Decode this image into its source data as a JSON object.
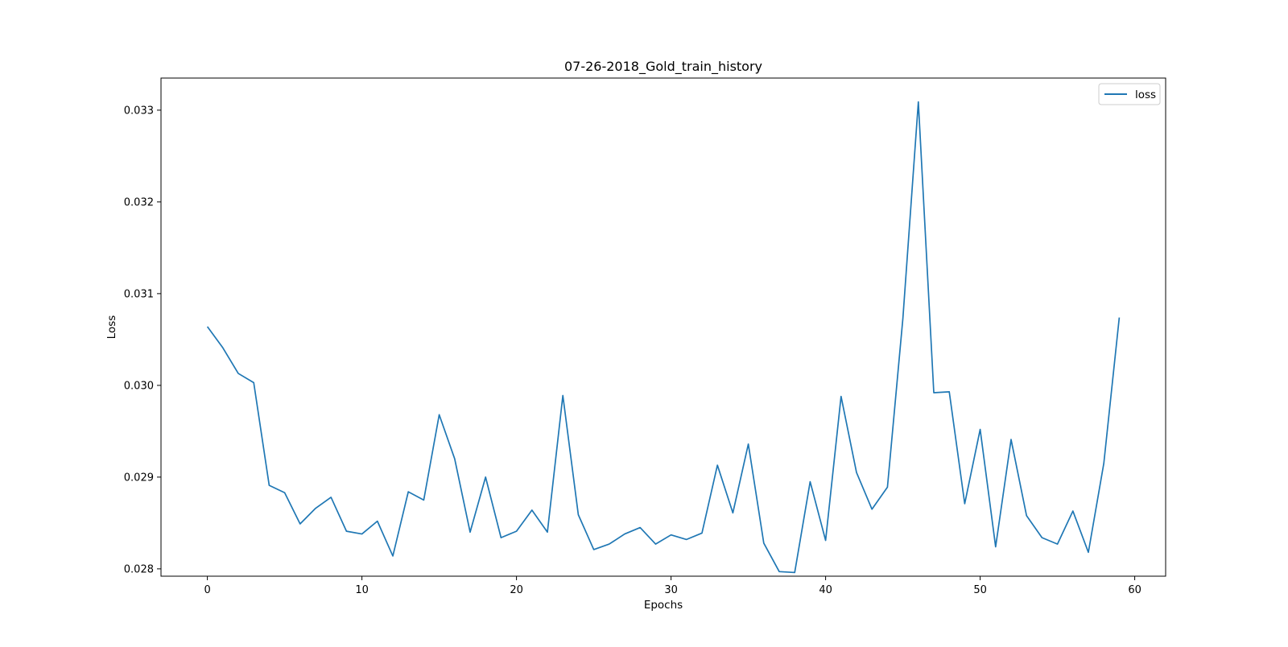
{
  "chart_data": {
    "type": "line",
    "title": "07-26-2018_Gold_train_history",
    "xlabel": "Epochs",
    "ylabel": "Loss",
    "xlim": [
      -3,
      62
    ],
    "ylim": [
      0.02792,
      0.03335
    ],
    "xticks": [
      0,
      10,
      20,
      30,
      40,
      50,
      60
    ],
    "xtick_labels": [
      "0",
      "10",
      "20",
      "30",
      "40",
      "50",
      "60"
    ],
    "yticks": [
      0.028,
      0.029,
      0.03,
      0.031,
      0.032,
      0.033
    ],
    "ytick_labels": [
      "0.028",
      "0.029",
      "0.030",
      "0.031",
      "0.032",
      "0.033"
    ],
    "grid": false,
    "legend_position": "top-right",
    "series": [
      {
        "name": "loss",
        "color": "#1f77b4",
        "x": [
          0,
          1,
          2,
          3,
          4,
          5,
          6,
          7,
          8,
          9,
          10,
          11,
          12,
          13,
          14,
          15,
          16,
          17,
          18,
          19,
          20,
          21,
          22,
          23,
          24,
          25,
          26,
          27,
          28,
          29,
          30,
          31,
          32,
          33,
          34,
          35,
          36,
          37,
          38,
          39,
          40,
          41,
          42,
          43,
          44,
          45,
          46,
          47,
          48,
          49,
          50,
          51,
          52,
          53,
          54,
          55,
          56,
          57,
          58,
          59
        ],
        "values": [
          0.03064,
          0.03041,
          0.03013,
          0.03003,
          0.02891,
          0.02883,
          0.02849,
          0.02866,
          0.02878,
          0.02841,
          0.02838,
          0.02852,
          0.02814,
          0.02884,
          0.02875,
          0.02968,
          0.0292,
          0.0284,
          0.029,
          0.02834,
          0.02841,
          0.02864,
          0.0284,
          0.02989,
          0.02859,
          0.02821,
          0.02827,
          0.02838,
          0.02845,
          0.02827,
          0.02837,
          0.02832,
          0.02839,
          0.02913,
          0.02861,
          0.02936,
          0.02828,
          0.02797,
          0.02796,
          0.02895,
          0.02831,
          0.02988,
          0.02905,
          0.02865,
          0.02889,
          0.03073,
          0.03309,
          0.02992,
          0.02993,
          0.02871,
          0.02952,
          0.02824,
          0.02941,
          0.02858,
          0.02834,
          0.02827,
          0.02863,
          0.02818,
          0.02915,
          0.03074
        ]
      }
    ]
  }
}
